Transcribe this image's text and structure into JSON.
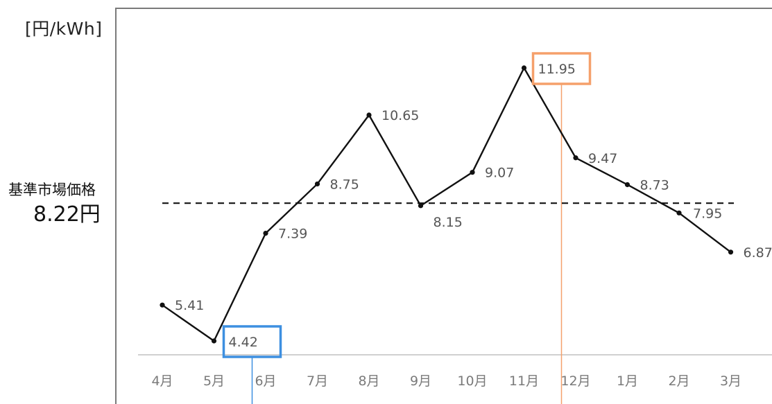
{
  "chart_data": {
    "type": "line",
    "title": "",
    "ylabel": "[円/kWh]",
    "xlabel": "",
    "categories": [
      "4月",
      "5月",
      "6月",
      "7月",
      "8月",
      "9月",
      "10月",
      "11月",
      "12月",
      "1月",
      "2月",
      "3月"
    ],
    "series": [
      {
        "values": [
          5.41,
          4.42,
          7.39,
          8.75,
          10.65,
          8.15,
          9.07,
          11.95,
          9.47,
          8.73,
          7.95,
          6.87
        ],
        "labels": [
          "5.41",
          "4.42",
          "7.39",
          "8.75",
          "10.65",
          "8.15",
          "9.07",
          "11.95",
          "9.47",
          "8.73",
          "7.95",
          "6.87"
        ]
      }
    ],
    "reference_line": {
      "caption": "基準市場価格",
      "value": 8.22,
      "value_label": "8.22円",
      "style": "dashed"
    },
    "highlights": [
      {
        "category": "5月",
        "kind": "min",
        "color": "#3d8fe0"
      },
      {
        "category": "11月",
        "kind": "max",
        "color": "#f5a06b"
      }
    ],
    "ylim": [
      3.7,
      12.6
    ],
    "grid": false,
    "legend": "none",
    "colors": {
      "line": "#111111",
      "axis": "#d0d0d0",
      "frame": "#7a7a7a",
      "tick_text": "#7a7a7a",
      "data_label_text": "#555555"
    }
  }
}
